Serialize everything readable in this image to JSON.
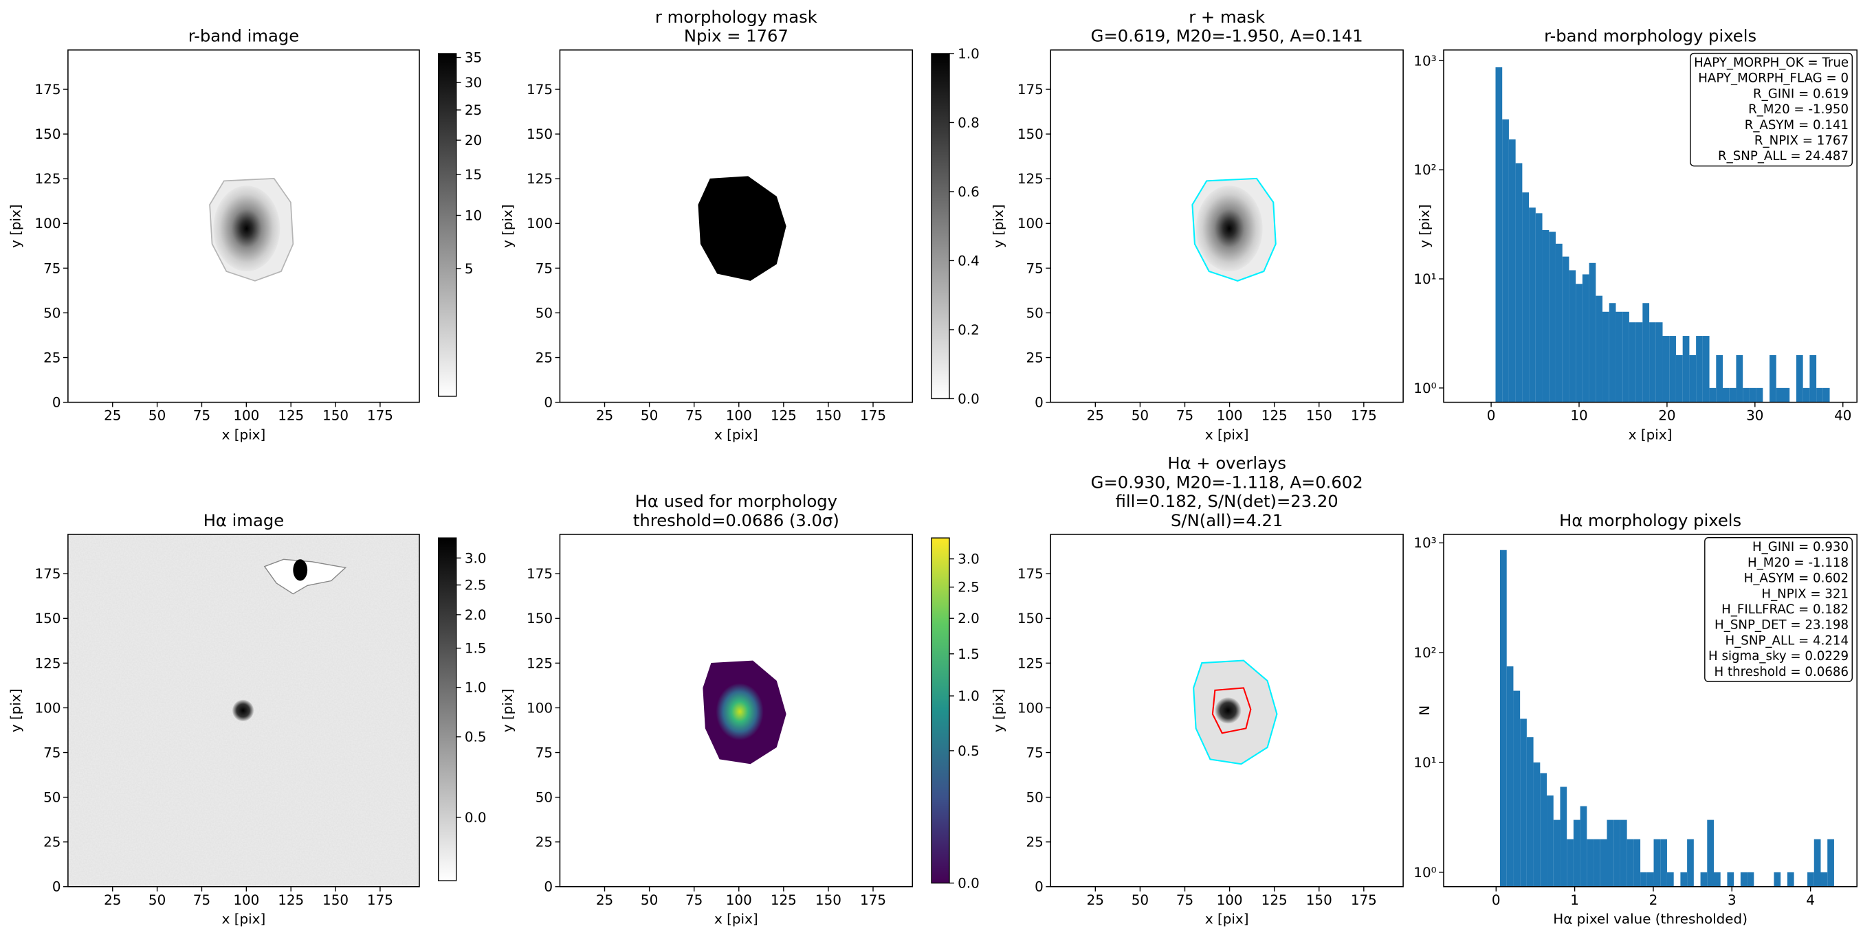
{
  "chart_data": [
    {
      "type": "image",
      "title": [
        "r-band image"
      ],
      "xlabel": "x [pix]",
      "ylabel": "y [pix]",
      "xlim": [
        0,
        197
      ],
      "ylim": [
        0,
        197
      ],
      "xticks": [
        25,
        50,
        75,
        100,
        125,
        150,
        175
      ],
      "yticks": [
        0,
        25,
        50,
        75,
        100,
        125,
        150,
        175
      ],
      "colorbar": {
        "cmap": "gray_r",
        "scale": "sqrt",
        "lim": [
          0.03,
          35.8
        ],
        "ticks": [
          5,
          10,
          15,
          20,
          25,
          30,
          35
        ]
      }
    },
    {
      "type": "image",
      "title": [
        "r morphology mask",
        "Npix = 1767"
      ],
      "xlabel": "x [pix]",
      "ylabel": "y [pix]",
      "xlim": [
        0,
        197
      ],
      "ylim": [
        0,
        197
      ],
      "xticks": [
        25,
        50,
        75,
        100,
        125,
        150,
        175
      ],
      "yticks": [
        0,
        25,
        50,
        75,
        100,
        125,
        150,
        175
      ],
      "colorbar": {
        "cmap": "gray_r",
        "scale": "linear",
        "lim": [
          0,
          1
        ],
        "ticks": [
          {
            "value": 0,
            "label": "0.0"
          },
          0.2,
          0.4,
          0.6,
          0.8,
          {
            "value": 1,
            "label": "1.0"
          }
        ]
      }
    },
    {
      "type": "image",
      "title": [
        "r + mask",
        "G=0.619, M20=-1.950, A=0.141"
      ],
      "xlabel": "x [pix]",
      "ylabel": "y [pix]",
      "xlim": [
        0,
        197
      ],
      "ylim": [
        0,
        197
      ],
      "xticks": [
        25,
        50,
        75,
        100,
        125,
        150,
        175
      ],
      "yticks": [
        0,
        25,
        50,
        75,
        100,
        125,
        150,
        175
      ]
    },
    {
      "type": "histogram",
      "title": [
        "r-band morphology pixels"
      ],
      "xlabel": "x [pix]",
      "ylabel": "y [pix]",
      "yscale": "log",
      "color": "#1f77b4",
      "xlim": [
        -5.4,
        41.6
      ],
      "ylim": [
        0.74,
        1253
      ],
      "xticks": [
        0,
        10,
        20,
        30,
        40
      ],
      "yticks": [
        {
          "value": 1,
          "label": "10⁰"
        },
        {
          "value": 10,
          "label": "10¹"
        },
        {
          "value": 100,
          "label": "10²"
        },
        {
          "value": 1000,
          "label": "10³"
        }
      ],
      "bins": [
        0.5,
        1.26,
        2.02,
        2.78,
        3.54,
        4.3,
        5.06,
        5.82,
        6.58,
        7.34,
        8.1,
        8.86,
        9.62,
        10.38,
        11.14,
        11.9,
        12.66,
        13.42,
        14.18,
        14.94,
        15.7,
        16.46,
        17.22,
        17.98,
        18.74,
        19.5,
        20.26,
        21.02,
        21.78,
        22.54,
        23.3,
        24.06,
        24.82,
        25.58,
        26.34,
        27.1,
        27.86,
        28.62,
        29.38,
        30.14,
        30.9,
        31.66,
        32.42,
        33.18,
        33.94,
        34.7,
        35.46,
        36.22,
        36.98,
        37.74,
        38.5
      ],
      "counts": [
        870,
        290,
        190,
        115,
        62,
        45,
        40,
        28,
        27,
        21,
        16,
        12,
        9,
        11,
        14,
        7,
        5,
        6,
        5,
        5,
        4,
        4,
        6,
        4,
        4,
        3,
        3,
        2,
        3,
        2,
        3,
        3,
        1,
        2,
        1,
        1,
        2,
        1,
        1,
        1,
        0,
        2,
        1,
        1,
        0,
        2,
        1,
        2,
        1,
        1
      ],
      "annotations": [
        "HAPY_MORPH_OK = True",
        "HAPY_MORPH_FLAG = 0",
        "R_GINI = 0.619",
        "R_M20 = -1.950",
        "R_ASYM = 0.141",
        "R_NPIX = 1767",
        "R_SNP_ALL = 24.487"
      ]
    },
    {
      "type": "image",
      "title": [
        "Hα image"
      ],
      "xlabel": "x [pix]",
      "ylabel": "y [pix]",
      "xlim": [
        0,
        197
      ],
      "ylim": [
        0,
        197
      ],
      "xticks": [
        25,
        50,
        75,
        100,
        125,
        150,
        175
      ],
      "yticks": [
        0,
        25,
        50,
        75,
        100,
        125,
        150,
        175
      ],
      "colorbar": {
        "cmap": "gray_r",
        "scale": "sqrt",
        "lim": [
          -0.12,
          3.4
        ],
        "ticks": [
          {
            "value": 0,
            "label": "0.0"
          },
          0.5,
          {
            "value": 1,
            "label": "1.0"
          },
          1.5,
          {
            "value": 2,
            "label": "2.0"
          },
          2.5,
          {
            "value": 3,
            "label": "3.0"
          }
        ]
      }
    },
    {
      "type": "image",
      "title": [
        "Hα used for morphology",
        "threshold=0.0686 (3.0σ)"
      ],
      "xlabel": "x [pix]",
      "ylabel": "y [pix]",
      "xlim": [
        0,
        197
      ],
      "ylim": [
        0,
        197
      ],
      "xticks": [
        25,
        50,
        75,
        100,
        125,
        150,
        175
      ],
      "yticks": [
        0,
        25,
        50,
        75,
        100,
        125,
        150,
        175
      ],
      "colorbar": {
        "cmap": "viridis",
        "scale": "sqrt",
        "lim": [
          0,
          3.4
        ],
        "ticks": [
          {
            "value": 0,
            "label": "0.0"
          },
          0.5,
          {
            "value": 1,
            "label": "1.0"
          },
          1.5,
          {
            "value": 2,
            "label": "2.0"
          },
          2.5,
          {
            "value": 3,
            "label": "3.0"
          }
        ]
      }
    },
    {
      "type": "image",
      "title": [
        "Hα + overlays",
        "G=0.930, M20=-1.118, A=0.602",
        "fill=0.182, S/N(det)=23.20",
        "S/N(all)=4.21"
      ],
      "xlabel": "x [pix]",
      "ylabel": "y [pix]",
      "xlim": [
        0,
        197
      ],
      "ylim": [
        0,
        197
      ],
      "xticks": [
        25,
        50,
        75,
        100,
        125,
        150,
        175
      ],
      "yticks": [
        0,
        25,
        50,
        75,
        100,
        125,
        150,
        175
      ]
    },
    {
      "type": "histogram",
      "title": [
        "Hα morphology pixels"
      ],
      "xlabel": "Hα pixel value (thresholded)",
      "ylabel": "N",
      "yscale": "log",
      "color": "#1f77b4",
      "xlim": [
        -0.667,
        4.591
      ],
      "ylim": [
        0.74,
        1195
      ],
      "xticks": [
        0,
        1,
        2,
        3,
        4
      ],
      "yticks": [
        {
          "value": 1,
          "label": "10⁰"
        },
        {
          "value": 10,
          "label": "10¹"
        },
        {
          "value": 100,
          "label": "10²"
        },
        {
          "value": 1000,
          "label": "10³"
        }
      ],
      "bins": [
        0.05,
        0.135,
        0.22,
        0.305,
        0.39,
        0.475,
        0.56,
        0.645,
        0.73,
        0.815,
        0.9,
        0.985,
        1.07,
        1.155,
        1.24,
        1.325,
        1.41,
        1.495,
        1.58,
        1.665,
        1.75,
        1.835,
        1.92,
        2.005,
        2.09,
        2.175,
        2.26,
        2.345,
        2.43,
        2.515,
        2.6,
        2.685,
        2.77,
        2.855,
        2.94,
        3.025,
        3.11,
        3.195,
        3.28,
        3.365,
        3.45,
        3.535,
        3.62,
        3.705,
        3.79,
        3.875,
        3.96,
        4.045,
        4.13,
        4.215,
        4.3
      ],
      "counts": [
        860,
        75,
        45,
        25,
        17,
        10,
        8,
        5,
        3,
        6,
        2,
        3,
        4,
        2,
        2,
        2,
        3,
        3,
        3,
        2,
        2,
        1,
        1,
        2,
        2,
        1,
        0,
        1,
        2,
        0,
        1,
        3,
        1,
        0,
        1,
        0,
        1,
        1,
        0,
        0,
        0,
        1,
        0,
        1,
        0,
        0,
        1,
        2,
        1,
        2
      ],
      "annotations": [
        "H_GINI = 0.930",
        "H_M20 = -1.118",
        "H_ASYM = 0.602",
        "H_NPIX = 321",
        "H_FILLFRAC = 0.182",
        "H_SNP_DET = 23.198",
        "H_SNP_ALL = 4.214",
        "H sigma_sky = 0.0229",
        "H threshold = 0.0686"
      ]
    }
  ]
}
